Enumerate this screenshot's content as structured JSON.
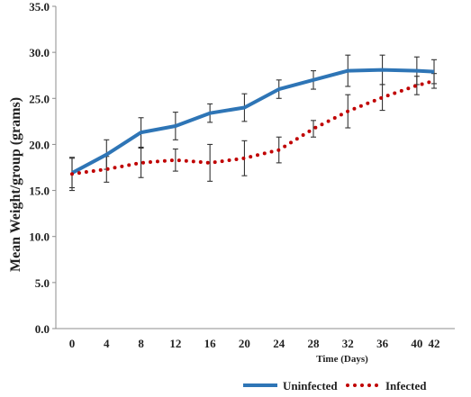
{
  "chart_data": {
    "type": "line",
    "title": "",
    "xlabel": "Time (Days)",
    "ylabel": "Mean Weight/group (grams)",
    "ylim": [
      0,
      35
    ],
    "y_ticks": [
      "0.0",
      "5.0",
      "10.0",
      "15.0",
      "20.0",
      "25.0",
      "30.0",
      "35.0"
    ],
    "x": [
      0,
      4,
      8,
      12,
      16,
      20,
      24,
      28,
      32,
      36,
      40,
      42
    ],
    "x_ticks": [
      "0",
      "4",
      "8",
      "12",
      "16",
      "20",
      "24",
      "28",
      "32",
      "36",
      "40",
      "42"
    ],
    "grid": false,
    "legend_position": "bottom-right",
    "series": [
      {
        "name": "Uninfected",
        "color": "#2e75b6",
        "style": "solid",
        "values": [
          16.9,
          18.9,
          21.3,
          22.0,
          23.4,
          24.0,
          26.0,
          27.0,
          28.0,
          28.1,
          28.0,
          27.9
        ],
        "errors": [
          1.6,
          1.6,
          1.6,
          1.5,
          1.0,
          1.5,
          1.0,
          1.0,
          1.7,
          1.6,
          1.5,
          1.3
        ]
      },
      {
        "name": "Infected",
        "color": "#c00000",
        "style": "dotted",
        "values": [
          16.8,
          17.3,
          18.0,
          18.3,
          18.0,
          18.5,
          19.4,
          21.7,
          23.6,
          25.1,
          26.4,
          26.9
        ],
        "errors": [
          1.8,
          1.4,
          1.6,
          1.2,
          2.0,
          1.9,
          1.4,
          0.9,
          1.8,
          1.4,
          1.0,
          0.8
        ]
      }
    ]
  }
}
